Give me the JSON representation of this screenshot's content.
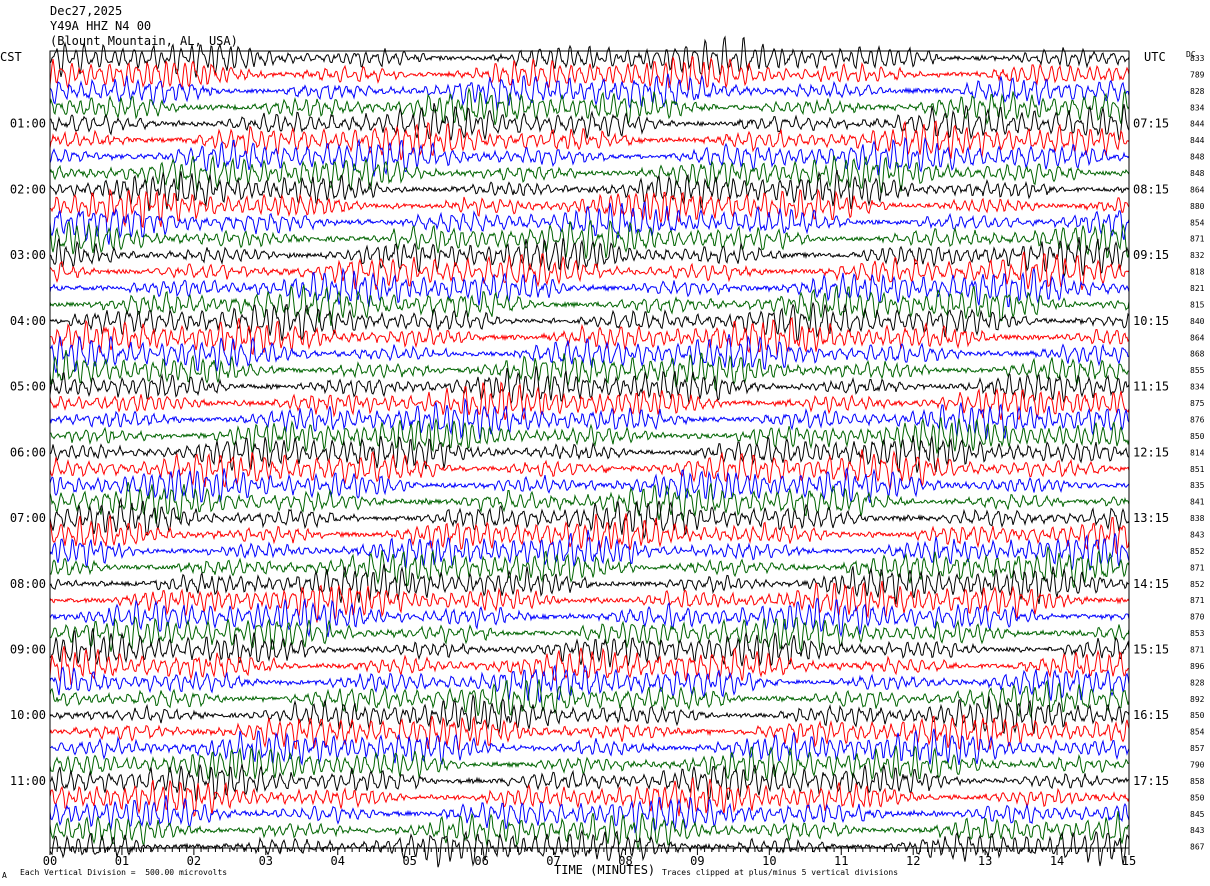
{
  "header": {
    "date": "Dec27,2025",
    "station": "Y49A HHZ N4 00",
    "location": "(Blount Mountain, AL, USA)"
  },
  "left_timezone": "CST",
  "right_timezone": "UTC",
  "dc_label": "DC",
  "footer": {
    "scale_note": "Each Vertical Division =  500.00 microvolts",
    "clip_note": "Traces clipped at plus/minus 5 vertical divisions",
    "corner_mark": "A"
  },
  "chart_data": {
    "type": "line",
    "title": "",
    "xlabel": "TIME (MINUTES)",
    "x_ticks": [
      "00",
      "01",
      "02",
      "03",
      "04",
      "05",
      "06",
      "07",
      "08",
      "09",
      "10",
      "11",
      "12",
      "13",
      "14",
      "15"
    ],
    "xlim": [
      0,
      15
    ],
    "left_hour_labels": [
      "01:00",
      "02:00",
      "03:00",
      "04:00",
      "05:00",
      "06:00",
      "07:00",
      "08:00",
      "09:00",
      "10:00",
      "11:00"
    ],
    "right_hour_labels": [
      "07:15",
      "08:15",
      "09:15",
      "10:15",
      "11:15",
      "12:15",
      "13:15",
      "14:15",
      "15:15",
      "16:15",
      "17:15"
    ],
    "trace_colors": [
      "#000000",
      "#ff0000",
      "#0000ff",
      "#006400"
    ],
    "dc_values": [
      "833",
      "789",
      "828",
      "834",
      "844",
      "844",
      "848",
      "848",
      "864",
      "880",
      "854",
      "871",
      "832",
      "818",
      "821",
      "815",
      "840",
      "864",
      "868",
      "855",
      "834",
      "875",
      "876",
      "850",
      "814",
      "851",
      "835",
      "841",
      "838",
      "843",
      "852",
      "871",
      "852",
      "871",
      "870",
      "853",
      "871",
      "896",
      "828",
      "892",
      "850",
      "854",
      "857",
      "790",
      "858",
      "850",
      "845",
      "843",
      "867"
    ]
  }
}
